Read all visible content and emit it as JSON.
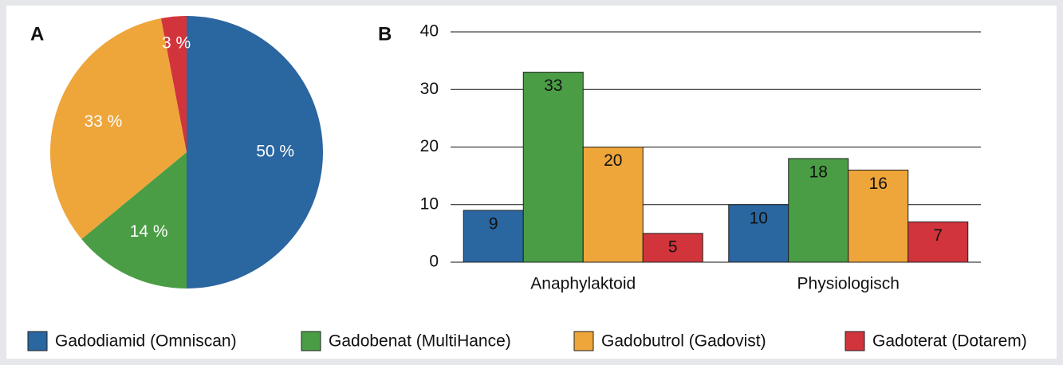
{
  "chart_data": [
    {
      "type": "pie",
      "label": "A",
      "values": [
        50,
        14,
        33,
        3
      ],
      "value_labels": [
        "50 %",
        "14 %",
        "33 %",
        "3 %"
      ],
      "colors": [
        "#2a66a0",
        "#4a9d45",
        "#eea53a",
        "#d2343c"
      ]
    },
    {
      "type": "bar",
      "label": "B",
      "categories": [
        "Anaphylaktoid",
        "Physiologisch"
      ],
      "series": [
        {
          "name": "Gadodiamid (Omniscan)",
          "color": "#2a66a0",
          "values": [
            9,
            10
          ]
        },
        {
          "name": "Gadobenat (MultiHance)",
          "color": "#4a9d45",
          "values": [
            33,
            18
          ]
        },
        {
          "name": "Gadobutrol (Gadovist)",
          "color": "#eea53a",
          "values": [
            20,
            16
          ]
        },
        {
          "name": "Gadoterat (Dotarem)",
          "color": "#d2343c",
          "values": [
            5,
            7
          ]
        }
      ],
      "ylim": [
        0,
        40
      ],
      "yticks": [
        0,
        10,
        20,
        30,
        40
      ],
      "grid": true
    }
  ]
}
